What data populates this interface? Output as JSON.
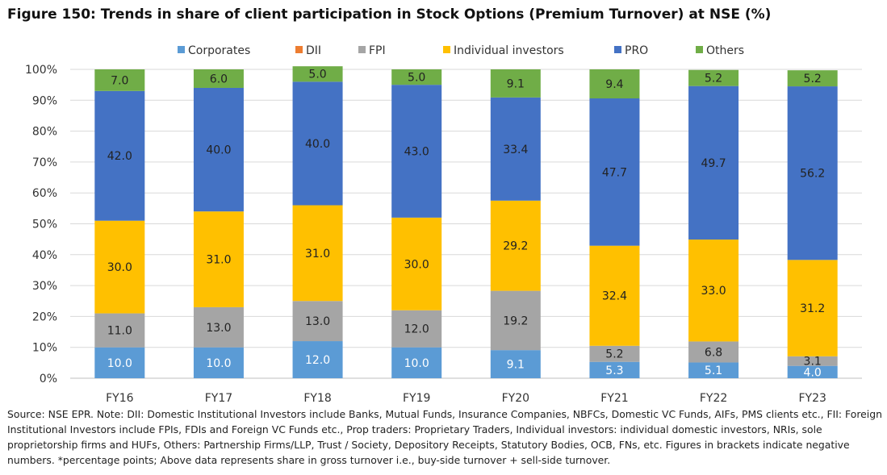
{
  "chart_data": {
    "type": "bar",
    "stacked": true,
    "title": "Figure 150: Trends in share of client participation in Stock Options (Premium Turnover) at NSE (%)",
    "categories": [
      "FY16",
      "FY17",
      "FY18",
      "FY19",
      "FY20",
      "FY21",
      "FY22",
      "FY23"
    ],
    "series": [
      {
        "name": "Corporates",
        "color": "#5B9BD5",
        "values": [
          10.0,
          10.0,
          12.0,
          10.0,
          9.1,
          5.3,
          5.1,
          4.0
        ]
      },
      {
        "name": "DII",
        "color": "#ED7D31",
        "values": [
          0,
          0,
          0,
          0,
          0,
          0,
          0,
          0
        ]
      },
      {
        "name": "FPI",
        "color": "#A5A5A5",
        "values": [
          11.0,
          13.0,
          13.0,
          12.0,
          19.2,
          5.2,
          6.8,
          3.1
        ]
      },
      {
        "name": "Individual investors",
        "color": "#FFC000",
        "values": [
          30.0,
          31.0,
          31.0,
          30.0,
          29.2,
          32.4,
          33.0,
          31.2
        ]
      },
      {
        "name": "PRO",
        "color": "#4472C4",
        "values": [
          42.0,
          40.0,
          40.0,
          43.0,
          33.4,
          47.7,
          49.7,
          56.2
        ]
      },
      {
        "name": "Others",
        "color": "#70AD47",
        "values": [
          7.0,
          6.0,
          5.0,
          5.0,
          9.1,
          9.4,
          5.2,
          5.2
        ]
      }
    ],
    "labels": [
      [
        "10.0",
        "",
        "11.0",
        "30.0",
        "42.0",
        "7.0"
      ],
      [
        "10.0",
        "",
        "13.0",
        "31.0",
        "40.0",
        "6.0"
      ],
      [
        "12.0",
        "",
        "13.0",
        "31.0",
        "40.0",
        "5.0"
      ],
      [
        "10.0",
        "",
        "12.0",
        "30.0",
        "43.0",
        "5.0"
      ],
      [
        "9.1",
        "",
        "19.2",
        "29.2",
        "33.4",
        "9.1"
      ],
      [
        "5.3",
        "",
        "5.2",
        "32.4",
        "47.7",
        "9.4"
      ],
      [
        "5.1",
        "",
        "6.8",
        "33.0",
        "49.7",
        "5.2"
      ],
      [
        "4.0",
        "",
        "3.1",
        "31.2",
        "56.2",
        "5.2"
      ]
    ],
    "y_ticks": [
      "0%",
      "10%",
      "20%",
      "30%",
      "40%",
      "50%",
      "60%",
      "70%",
      "80%",
      "90%",
      "100%"
    ],
    "ylim": [
      0,
      100
    ],
    "grid": true,
    "legend_position": "top",
    "xlabel": "",
    "ylabel": ""
  },
  "source_note": "Source: NSE EPR. Note: DII: Domestic Institutional Investors include Banks, Mutual Funds, Insurance Companies, NBFCs, Domestic VC Funds, AIFs, PMS clients etc., FII: Foreign Institutional Investors include FPIs, FDIs and Foreign VC Funds etc., Prop traders: Proprietary Traders, Individual investors: individual domestic investors, NRIs, sole proprietorship firms and HUFs, Others: Partnership Firms/LLP, Trust / Society, Depository Receipts, Statutory Bodies, OCB, FNs, etc. Figures in brackets indicate negative numbers. *percentage points; Above data represents share in gross turnover i.e., buy-side turnover + sell-side turnover."
}
